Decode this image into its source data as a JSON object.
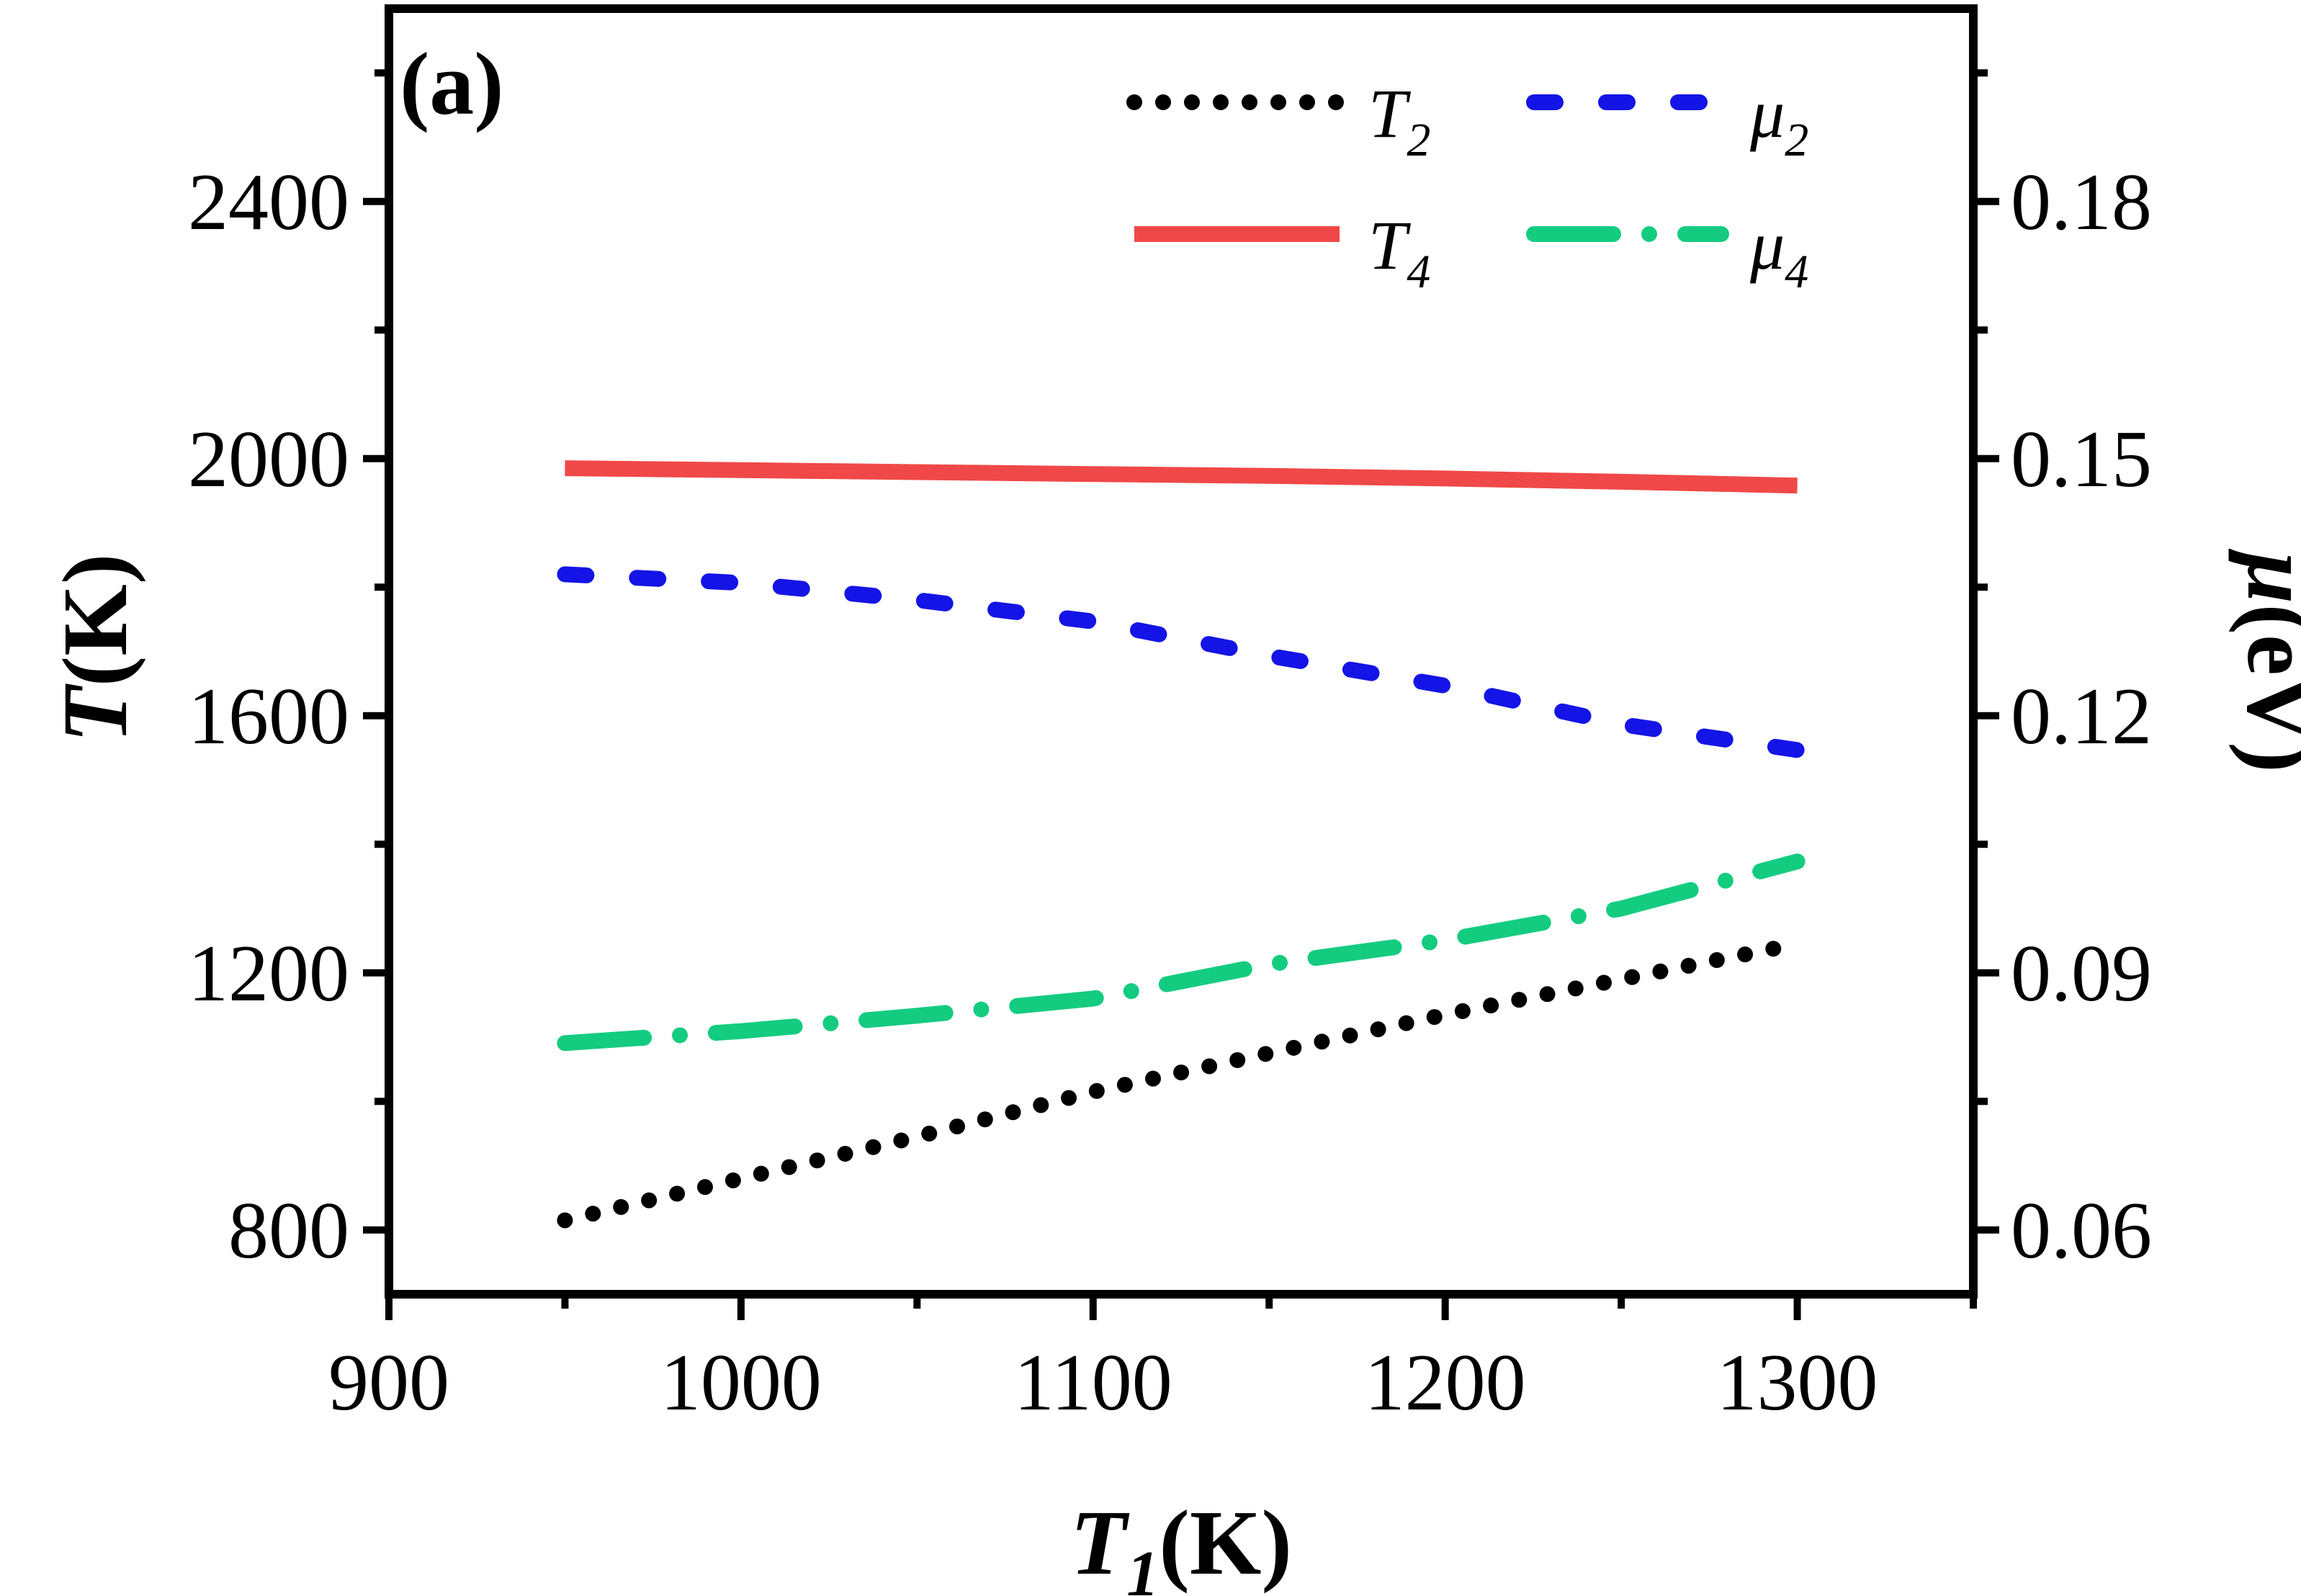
{
  "chart_data": {
    "type": "line",
    "panel_label": "(a)",
    "title": "",
    "x": [
      950,
      1000,
      1050,
      1100,
      1150,
      1200,
      1250,
      1300
    ],
    "xlim": [
      900,
      1350
    ],
    "xticks": [
      900,
      1000,
      1100,
      1200,
      1300
    ],
    "xlabel": {
      "main": "T",
      "sub": "1",
      "unit": "(K)"
    },
    "ylim_left": [
      700,
      2700
    ],
    "yticks_left": [
      800,
      1200,
      1600,
      2000,
      2400
    ],
    "ylabel_left": {
      "main": "T",
      "unit": "(K)"
    },
    "ylim_right": [
      0.0525,
      0.2025
    ],
    "yticks_right": [
      0.06,
      0.09,
      0.12,
      0.15,
      0.18
    ],
    "ylabel_right": {
      "main": "μ",
      "unit": "(eV)"
    },
    "series": [
      {
        "name": "T2",
        "label_main": "T",
        "label_sub": "2",
        "axis": "left",
        "style": "dotted",
        "color": "#000000",
        "values": [
          815,
          880,
          945,
          1015,
          1075,
          1135,
          1190,
          1245
        ]
      },
      {
        "name": "T4",
        "label_main": "T",
        "label_sub": "4",
        "axis": "left",
        "style": "solid",
        "color": "#f04848",
        "values": [
          1985,
          1982,
          1979,
          1976,
          1973,
          1969,
          1964,
          1958
        ]
      },
      {
        "name": "μ2",
        "label_main": "μ",
        "label_sub": "2",
        "axis": "right",
        "style": "dash",
        "color": "#1414e6",
        "values": [
          0.1365,
          0.1355,
          0.1335,
          0.131,
          0.127,
          0.1235,
          0.119,
          0.116
        ]
      },
      {
        "name": "μ4",
        "label_main": "μ",
        "label_sub": "4",
        "axis": "right",
        "style": "dashdot",
        "color": "#14cc80",
        "values": [
          0.0818,
          0.0832,
          0.085,
          0.087,
          0.091,
          0.0938,
          0.0975,
          0.103
        ]
      }
    ],
    "legend_position": "top-right"
  }
}
